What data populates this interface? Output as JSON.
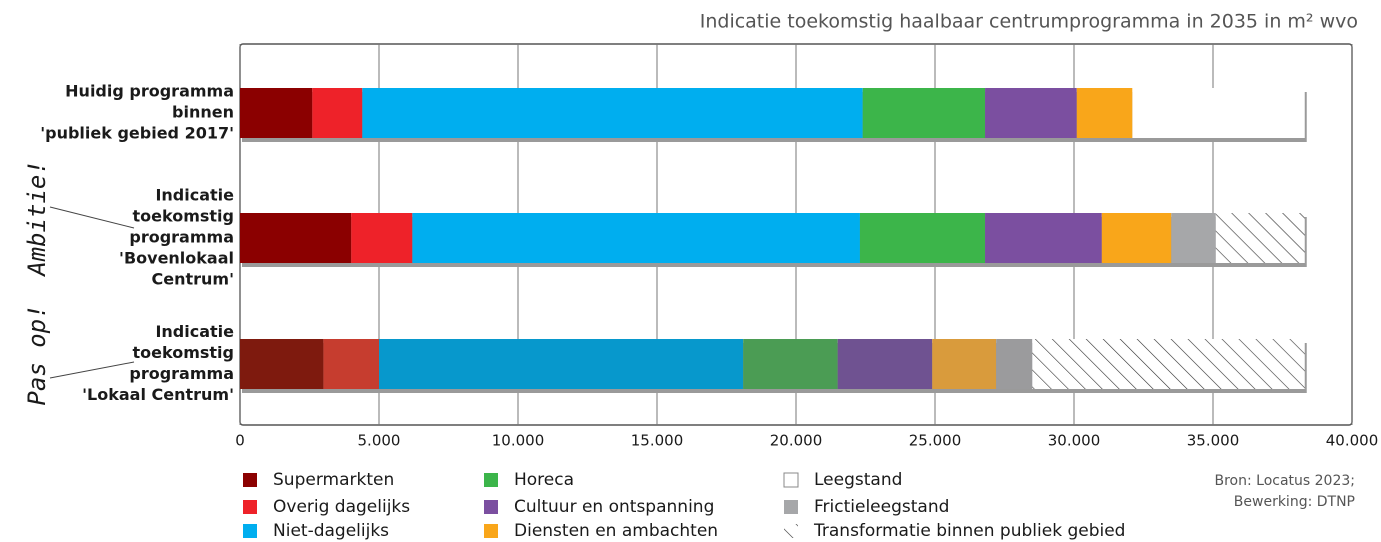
{
  "chart_data": {
    "type": "stacked-bar-horizontal",
    "title": "Indicatie toekomstig haalbaar centrumprogramma in 2035 in m² wvo",
    "categories": [
      [
        "Huidig programma",
        "binnen",
        "'publiek gebied 2017'"
      ],
      [
        "Indicatie",
        "toekomstig",
        "programma",
        "'Bovenlokaal",
        "Centrum'"
      ],
      [
        "Indicatie",
        "toekomstig",
        "programma",
        "'Lokaal Centrum'"
      ]
    ],
    "series": [
      {
        "name": "Supermarkten",
        "colors": [
          "#8b0000",
          "#8b0000",
          "#7e1a0e"
        ],
        "values": [
          2600,
          4000,
          3000
        ]
      },
      {
        "name": "Overig dagelijks",
        "colors": [
          "#ee2229",
          "#ee2229",
          "#c63d2f"
        ],
        "values": [
          1800,
          2200,
          2000
        ]
      },
      {
        "name": "Niet-dagelijks",
        "colors": [
          "#00aeef",
          "#00aeef",
          "#0798cc"
        ],
        "values": [
          18000,
          16100,
          13100
        ]
      },
      {
        "name": "Horeca",
        "colors": [
          "#3cb54a",
          "#3cb54a",
          "#4b9c54"
        ],
        "values": [
          4400,
          4500,
          3400
        ]
      },
      {
        "name": "Cultuur en ontspanning",
        "colors": [
          "#7b4fa0",
          "#7b4fa0",
          "#6f5291"
        ],
        "values": [
          3300,
          4200,
          3400
        ]
      },
      {
        "name": "Diensten en ambachten",
        "colors": [
          "#f9a61a",
          "#f9a61a",
          "#d99b3c"
        ],
        "values": [
          2000,
          2500,
          2300
        ]
      },
      {
        "name": "Leegstand",
        "colors": [
          "#ffffff",
          "#ffffff",
          "#ffffff"
        ],
        "values": [
          6200,
          0,
          0
        ]
      },
      {
        "name": "Frictieleegstand",
        "colors": [
          "#a6a7a9",
          "#a6a7a9",
          "#9b9b9d"
        ],
        "values": [
          0,
          1600,
          1300
        ]
      },
      {
        "name": "Transformatie binnen publiek gebied",
        "colors": [
          "url(#hatch)",
          "url(#hatch)",
          "url(#hatch)"
        ],
        "values": [
          0,
          3200,
          9800
        ]
      }
    ],
    "xlim": [
      0,
      40000
    ],
    "xticks": [
      0,
      {
        "value": 5000,
        "label": "5.000"
      },
      {
        "value": 10000,
        "label": "10.000"
      },
      {
        "value": 15000,
        "label": "15.000"
      },
      {
        "value": 20000,
        "label": "20.000"
      },
      {
        "value": 25000,
        "label": "25.000"
      },
      {
        "value": 30000,
        "label": "30.000"
      },
      {
        "value": 35000,
        "label": "35.000"
      },
      {
        "value": 40000,
        "label": "40.000"
      }
    ],
    "grid": true,
    "annotations": [
      "Ambitie!",
      "Pas op!"
    ],
    "source": [
      "Bron: Locatus 2023;",
      "Bewerking: DTNP"
    ]
  }
}
